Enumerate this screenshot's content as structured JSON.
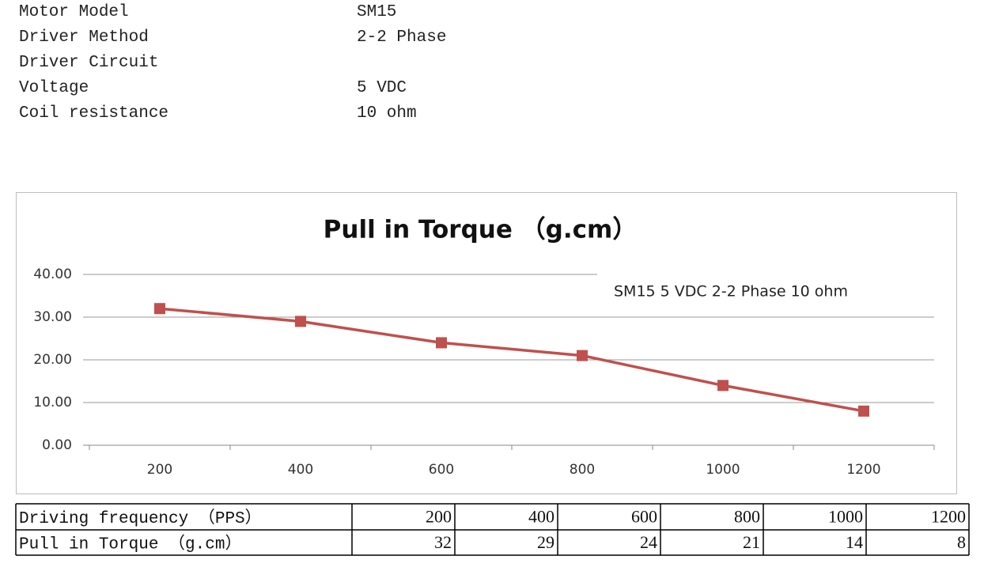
{
  "specs": [
    {
      "label": "Motor Model",
      "value": "SM15"
    },
    {
      "label": "Driver Method",
      "value": "2-2 Phase"
    },
    {
      "label": "Driver Circuit"
    },
    {
      "label": "Voltage",
      "value": "5 VDC"
    },
    {
      "label": "Coil resistance",
      "value": "10 ohm"
    }
  ],
  "chart_data": {
    "type": "line",
    "title": "Pull in Torque （g.cm）",
    "annotation": "SM15  5 VDC 2-2 Phase  10 ohm",
    "categories": [
      "200",
      "400",
      "600",
      "800",
      "1000",
      "1200"
    ],
    "values": [
      32,
      29,
      24,
      21,
      14,
      8
    ],
    "color": "#c0504d",
    "ylim": [
      0,
      40
    ],
    "yticks": [
      {
        "value": 0,
        "label": "0.00"
      },
      {
        "value": 10,
        "label": "10.00"
      },
      {
        "value": 20,
        "label": "20.00"
      },
      {
        "value": 30,
        "label": "30.00"
      },
      {
        "value": 40,
        "label": "40.00"
      }
    ],
    "grid": true
  },
  "table": {
    "row_headers": [
      "Driving frequency （PPS）",
      "Pull in Torque （g.cm）"
    ]
  }
}
